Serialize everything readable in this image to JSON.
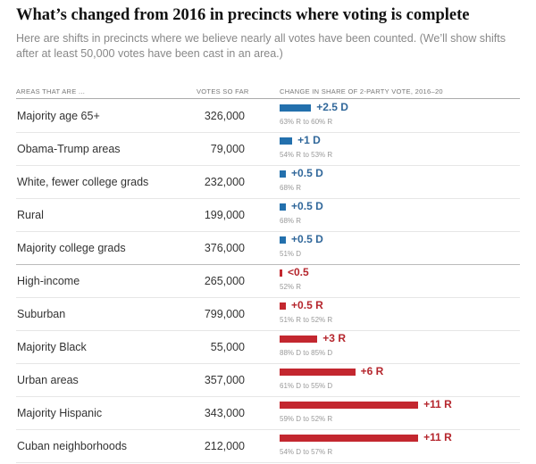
{
  "title": "What’s changed from 2016 in precincts where voting is complete",
  "subtitle": "Here are shifts in precincts where we believe nearly all votes have been counted. (We’ll show shifts after at least 50,000 votes have been cast in an area.)",
  "chart_data": {
    "type": "bar",
    "columns": [
      "AREAS THAT ARE ...",
      "VOTES SO FAR",
      "CHANGE IN SHARE OF 2-PARTY VOTE, 2016–20"
    ],
    "colors": {
      "D": "#2370ad",
      "R": "#c3272f",
      "D_text": "#30679a",
      "R_text": "#b5262d"
    },
    "rows": [
      {
        "area": "Majority age 65+",
        "votes": "326,000",
        "shift": 2.5,
        "party": "D",
        "label": "+2.5 D",
        "detail": "63% R to 60% R"
      },
      {
        "area": "Obama-Trump areas",
        "votes": "79,000",
        "shift": 1,
        "party": "D",
        "label": "+1 D",
        "detail": "54% R to 53% R"
      },
      {
        "area": "White, fewer college grads",
        "votes": "232,000",
        "shift": 0.5,
        "party": "D",
        "label": "+0.5 D",
        "detail": "68% R"
      },
      {
        "area": "Rural",
        "votes": "199,000",
        "shift": 0.5,
        "party": "D",
        "label": "+0.5 D",
        "detail": "68% R"
      },
      {
        "area": "Majority college grads",
        "votes": "376,000",
        "shift": 0.5,
        "party": "D",
        "label": "+0.5 D",
        "detail": "51% D"
      },
      {
        "area": "High-income",
        "votes": "265,000",
        "shift": 0.2,
        "party": "R",
        "label": "<0.5",
        "detail": "52% R"
      },
      {
        "area": "Suburban",
        "votes": "799,000",
        "shift": 0.5,
        "party": "R",
        "label": "+0.5 R",
        "detail": "51% R to 52% R"
      },
      {
        "area": "Majority Black",
        "votes": "55,000",
        "shift": 3,
        "party": "R",
        "label": "+3 R",
        "detail": "88% D to 85% D"
      },
      {
        "area": "Urban areas",
        "votes": "357,000",
        "shift": 6,
        "party": "R",
        "label": "+6 R",
        "detail": "61% D to 55% D"
      },
      {
        "area": "Majority Hispanic",
        "votes": "343,000",
        "shift": 11,
        "party": "R",
        "label": "+11 R",
        "detail": "59% D to 52% R"
      },
      {
        "area": "Cuban neighborhoods",
        "votes": "212,000",
        "shift": 11,
        "party": "R",
        "label": "+11 R",
        "detail": "54% D to 57% R"
      }
    ]
  }
}
